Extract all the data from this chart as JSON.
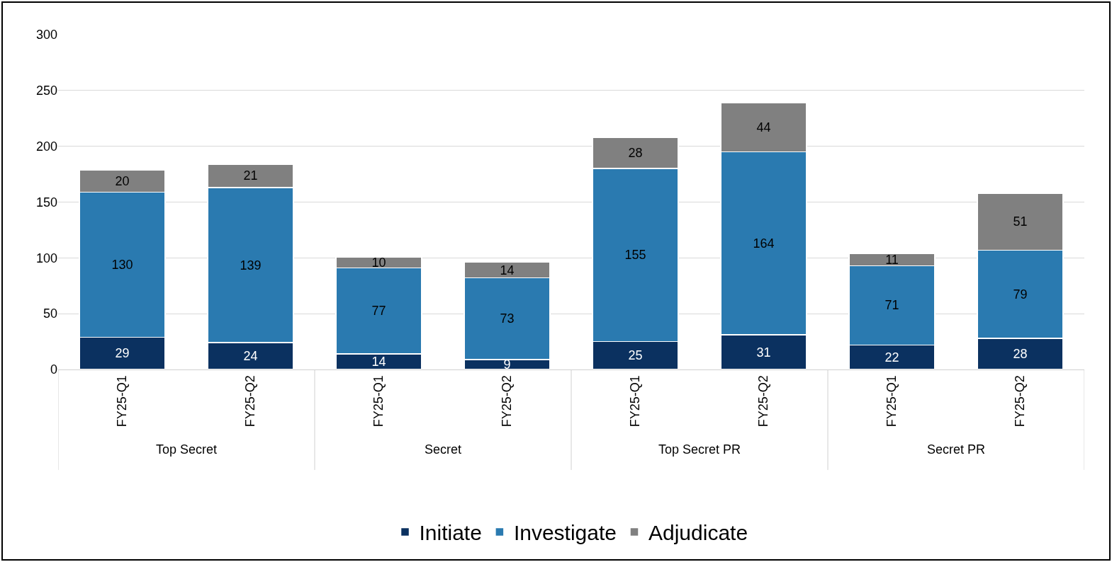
{
  "chart_data": {
    "type": "bar",
    "stacked": true,
    "data_labels": true,
    "categories": [
      "FY25-Q1",
      "FY25-Q2",
      "FY25-Q1",
      "FY25-Q2",
      "FY25-Q1",
      "FY25-Q2",
      "FY25-Q1",
      "FY25-Q2"
    ],
    "annotations": [
      "Top Secret",
      "Secret",
      "Top Secret PR",
      "Secret PR"
    ],
    "series": [
      {
        "name": "Initiate",
        "color": "#0b3160",
        "values": [
          29,
          24,
          14,
          9,
          25,
          31,
          22,
          28
        ]
      },
      {
        "name": "Investigate",
        "color": "#2a7ab0",
        "values": [
          130,
          139,
          77,
          73,
          155,
          164,
          71,
          79
        ]
      },
      {
        "name": "Adjudicate",
        "color": "#808080",
        "values": [
          20,
          21,
          10,
          14,
          28,
          44,
          11,
          51
        ]
      }
    ],
    "ylim": [
      0,
      300
    ],
    "yticks": [
      0,
      50,
      100,
      150,
      200,
      250,
      300
    ],
    "grid": "y",
    "legend": "bottom"
  }
}
